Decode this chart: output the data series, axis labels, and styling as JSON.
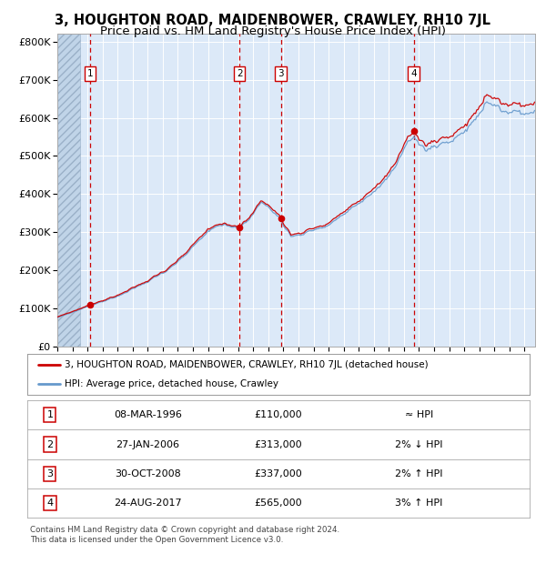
{
  "title": "3, HOUGHTON ROAD, MAIDENBOWER, CRAWLEY, RH10 7JL",
  "subtitle": "Price paid vs. HM Land Registry's House Price Index (HPI)",
  "ylim": [
    0,
    820000
  ],
  "yticks": [
    0,
    100000,
    200000,
    300000,
    400000,
    500000,
    600000,
    700000,
    800000
  ],
  "ytick_labels": [
    "£0",
    "£100K",
    "£200K",
    "£300K",
    "£400K",
    "£500K",
    "£600K",
    "£700K",
    "£800K"
  ],
  "xlim_start": 1994.0,
  "xlim_end": 2025.7,
  "plot_bg_color": "#dce9f8",
  "grid_color": "#ffffff",
  "red_line_color": "#cc0000",
  "blue_line_color": "#6699cc",
  "sale_marker_color": "#cc0000",
  "dashed_line_color": "#cc0000",
  "transactions": [
    {
      "num": 1,
      "date_label": "08-MAR-1996",
      "price": 110000,
      "hpi_note": "≈ HPI",
      "x_year": 1996.19
    },
    {
      "num": 2,
      "date_label": "27-JAN-2006",
      "price": 313000,
      "hpi_note": "2% ↓ HPI",
      "x_year": 2006.08
    },
    {
      "num": 3,
      "date_label": "30-OCT-2008",
      "price": 337000,
      "hpi_note": "2% ↑ HPI",
      "x_year": 2008.83
    },
    {
      "num": 4,
      "date_label": "24-AUG-2017",
      "price": 565000,
      "hpi_note": "3% ↑ HPI",
      "x_year": 2017.65
    }
  ],
  "legend_line1": "3, HOUGHTON ROAD, MAIDENBOWER, CRAWLEY, RH10 7JL (detached house)",
  "legend_line2": "HPI: Average price, detached house, Crawley",
  "footer1": "Contains HM Land Registry data © Crown copyright and database right 2024.",
  "footer2": "This data is licensed under the Open Government Licence v3.0.",
  "hatch_end_year": 1995.5,
  "title_fontsize": 10.5,
  "subtitle_fontsize": 9.5
}
